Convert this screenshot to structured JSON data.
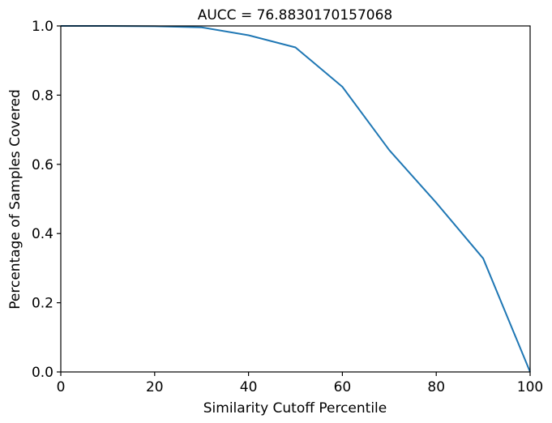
{
  "chart_data": {
    "type": "line",
    "title": "AUCC = 76.8830170157068",
    "xlabel": "Similarity Cutoff Percentile",
    "ylabel": "Percentage of Samples Covered",
    "xlim": [
      0,
      100
    ],
    "ylim": [
      0.0,
      1.0
    ],
    "xticks": [
      "0",
      "20",
      "40",
      "60",
      "80",
      "100"
    ],
    "yticks": [
      "0.0",
      "0.2",
      "0.4",
      "0.6",
      "0.8",
      "1.0"
    ],
    "grid": false,
    "series": [
      {
        "color": "#1f77b4",
        "x": [
          0,
          10,
          20,
          30,
          40,
          50,
          60,
          70,
          80,
          90,
          100
        ],
        "y": [
          1.0,
          1.0,
          0.999,
          0.996,
          0.973,
          0.938,
          0.824,
          0.641,
          0.489,
          0.328,
          0.0
        ]
      }
    ]
  }
}
